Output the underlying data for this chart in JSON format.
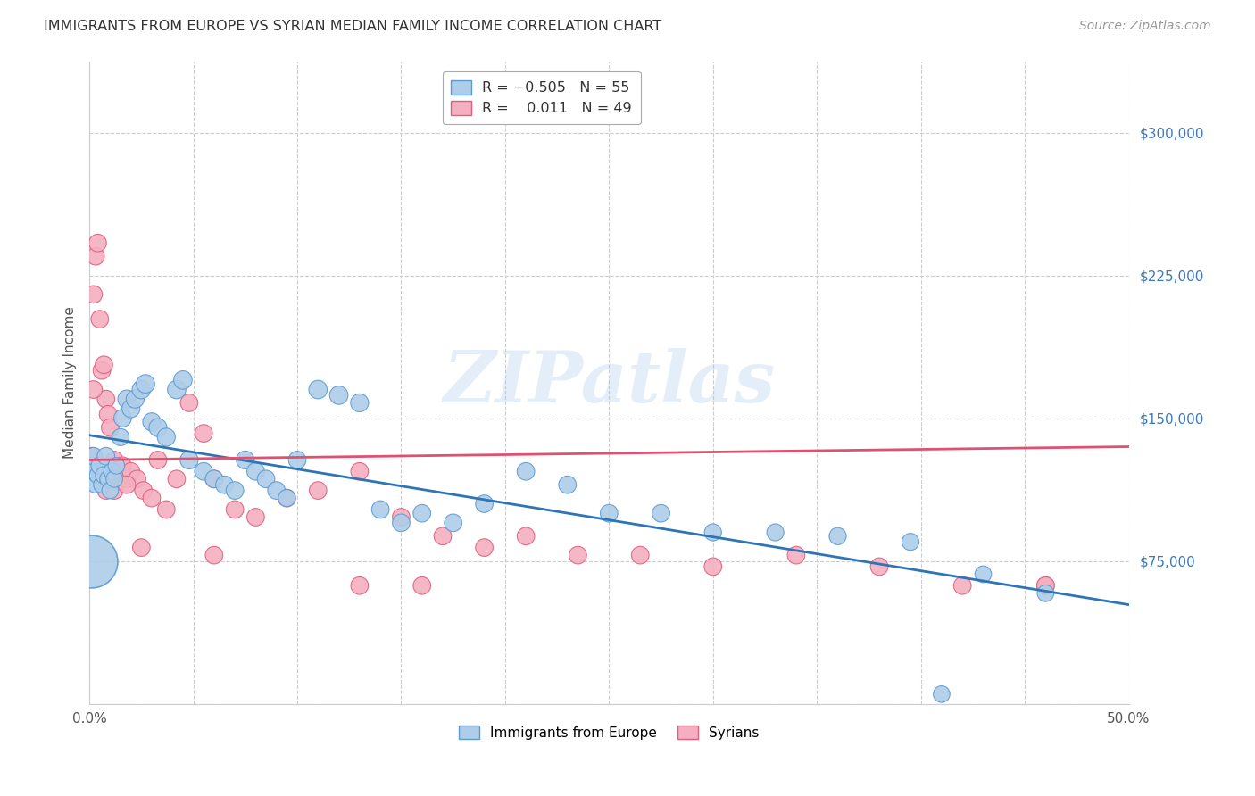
{
  "title": "IMMIGRANTS FROM EUROPE VS SYRIAN MEDIAN FAMILY INCOME CORRELATION CHART",
  "source": "Source: ZipAtlas.com",
  "ylabel": "Median Family Income",
  "xlim": [
    0,
    0.5
  ],
  "ylim": [
    0,
    337500
  ],
  "xticks": [
    0.0,
    0.05,
    0.1,
    0.15,
    0.2,
    0.25,
    0.3,
    0.35,
    0.4,
    0.45,
    0.5
  ],
  "yticks": [
    0,
    75000,
    150000,
    225000,
    300000
  ],
  "watermark_text": "ZIPatlas",
  "europe_color_edge": "#5b9bd5",
  "europe_color_fill": "#aecde8",
  "syrian_color_edge": "#e06080",
  "syrian_color_fill": "#f4afc0",
  "europe_line_color": "#2e75b6",
  "syrian_line_color": "#e05070",
  "background_color": "#ffffff",
  "grid_color": "#cccccc",
  "europe_line_x0": 0.0,
  "europe_line_y0": 141000,
  "europe_line_x1": 0.5,
  "europe_line_y1": 52000,
  "syrian_line_x0": 0.0,
  "syrian_line_y0": 128000,
  "syrian_line_x1": 0.5,
  "syrian_line_y1": 135000,
  "europe_x": [
    0.001,
    0.002,
    0.003,
    0.004,
    0.005,
    0.006,
    0.007,
    0.008,
    0.009,
    0.01,
    0.011,
    0.012,
    0.013,
    0.015,
    0.016,
    0.018,
    0.02,
    0.022,
    0.025,
    0.027,
    0.03,
    0.033,
    0.037,
    0.042,
    0.045,
    0.048,
    0.055,
    0.06,
    0.065,
    0.07,
    0.075,
    0.08,
    0.085,
    0.09,
    0.095,
    0.1,
    0.11,
    0.12,
    0.13,
    0.14,
    0.15,
    0.16,
    0.175,
    0.19,
    0.21,
    0.23,
    0.25,
    0.275,
    0.3,
    0.33,
    0.36,
    0.395,
    0.43,
    0.46,
    0.41
  ],
  "europe_y": [
    125000,
    130000,
    115000,
    120000,
    125000,
    115000,
    120000,
    130000,
    118000,
    112000,
    122000,
    118000,
    125000,
    140000,
    150000,
    160000,
    155000,
    160000,
    165000,
    168000,
    148000,
    145000,
    140000,
    165000,
    170000,
    128000,
    122000,
    118000,
    115000,
    112000,
    128000,
    122000,
    118000,
    112000,
    108000,
    128000,
    165000,
    162000,
    158000,
    102000,
    95000,
    100000,
    95000,
    105000,
    122000,
    115000,
    100000,
    100000,
    90000,
    90000,
    88000,
    85000,
    68000,
    58000,
    5000
  ],
  "europe_size": [
    200,
    200,
    180,
    180,
    200,
    180,
    190,
    200,
    180,
    180,
    190,
    180,
    180,
    190,
    200,
    210,
    210,
    210,
    220,
    220,
    210,
    210,
    210,
    220,
    220,
    210,
    200,
    200,
    200,
    200,
    210,
    200,
    200,
    200,
    190,
    200,
    220,
    220,
    210,
    200,
    200,
    200,
    200,
    200,
    200,
    200,
    200,
    200,
    190,
    190,
    190,
    190,
    180,
    180,
    180
  ],
  "europe_big_x": [
    0.001
  ],
  "europe_big_y": [
    75000
  ],
  "europe_big_size": [
    1800
  ],
  "syrian_x": [
    0.001,
    0.002,
    0.003,
    0.004,
    0.005,
    0.006,
    0.007,
    0.008,
    0.009,
    0.01,
    0.012,
    0.014,
    0.016,
    0.018,
    0.02,
    0.023,
    0.026,
    0.03,
    0.033,
    0.037,
    0.042,
    0.048,
    0.055,
    0.06,
    0.07,
    0.08,
    0.095,
    0.11,
    0.13,
    0.15,
    0.17,
    0.19,
    0.21,
    0.235,
    0.265,
    0.3,
    0.34,
    0.38,
    0.42,
    0.46,
    0.002,
    0.008,
    0.012,
    0.018,
    0.025,
    0.06,
    0.13,
    0.16,
    0.46
  ],
  "syrian_y": [
    130000,
    215000,
    235000,
    242000,
    202000,
    175000,
    178000,
    160000,
    152000,
    145000,
    128000,
    122000,
    125000,
    118000,
    122000,
    118000,
    112000,
    108000,
    128000,
    102000,
    118000,
    158000,
    142000,
    118000,
    102000,
    98000,
    108000,
    112000,
    122000,
    98000,
    88000,
    82000,
    88000,
    78000,
    78000,
    72000,
    78000,
    72000,
    62000,
    62000,
    165000,
    112000,
    112000,
    115000,
    82000,
    78000,
    62000,
    62000,
    62000
  ],
  "syrian_size": [
    200,
    200,
    200,
    200,
    200,
    200,
    200,
    200,
    200,
    200,
    200,
    200,
    200,
    200,
    200,
    200,
    200,
    200,
    200,
    200,
    200,
    200,
    200,
    200,
    200,
    200,
    200,
    200,
    200,
    200,
    200,
    200,
    200,
    200,
    200,
    200,
    200,
    200,
    200,
    200,
    200,
    200,
    200,
    200,
    200,
    200,
    200,
    200,
    200
  ]
}
